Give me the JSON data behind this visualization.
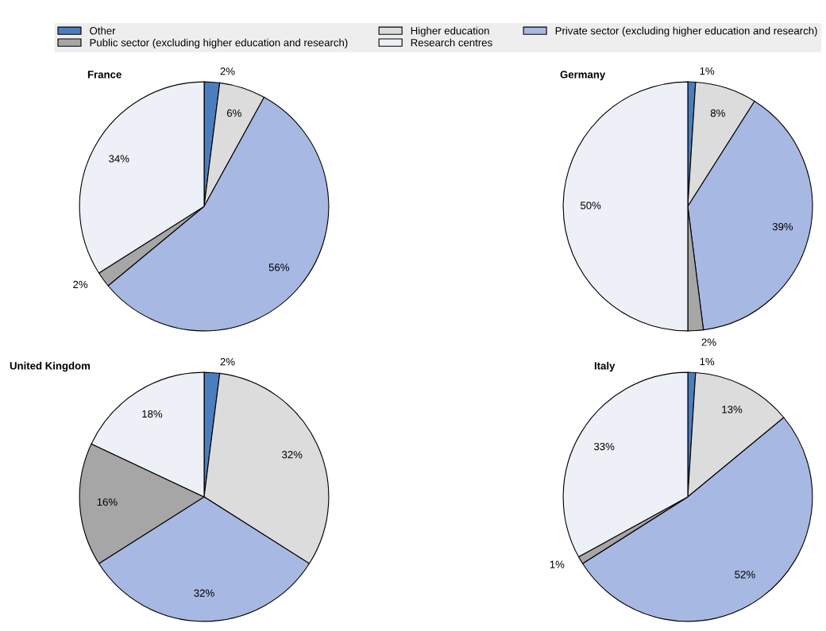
{
  "chart_data": [
    {
      "type": "pie",
      "title": "France",
      "legend": "top",
      "categories": [
        "Other",
        "Higher education",
        "Private sector (excluding higher education and research)",
        "Public sector (excluding higher education and research)",
        "Research centres"
      ],
      "values": [
        2,
        6,
        56,
        2,
        34
      ],
      "colors": [
        "#4a7ebf",
        "#dcdcdc",
        "#a7b8e2",
        "#a6a6a6",
        "#edf0f7"
      ],
      "value_labels": [
        "2%",
        "6%",
        "56%",
        "2%",
        "34%"
      ]
    },
    {
      "type": "pie",
      "title": "Germany",
      "values": [
        1,
        8,
        39,
        2,
        50
      ],
      "colors": [
        "#4a7ebf",
        "#dcdcdc",
        "#a7b8e2",
        "#a6a6a6",
        "#edf0f7"
      ],
      "value_labels": [
        "1%",
        "8%",
        "39%",
        "2%",
        "50%"
      ]
    },
    {
      "type": "pie",
      "title": "United Kingdom",
      "values": [
        2,
        32,
        32,
        16,
        18
      ],
      "colors": [
        "#4a7ebf",
        "#dcdcdc",
        "#a7b8e2",
        "#a6a6a6",
        "#edf0f7"
      ],
      "value_labels": [
        "2%",
        "32%",
        "32%",
        "16%",
        "18%"
      ]
    },
    {
      "type": "pie",
      "title": "Italy",
      "values": [
        1,
        13,
        52,
        1,
        33
      ],
      "colors": [
        "#4a7ebf",
        "#dcdcdc",
        "#a7b8e2",
        "#a6a6a6",
        "#edf0f7"
      ],
      "value_labels": [
        "1%",
        "13%",
        "52%",
        "1%",
        "33%"
      ]
    }
  ]
}
